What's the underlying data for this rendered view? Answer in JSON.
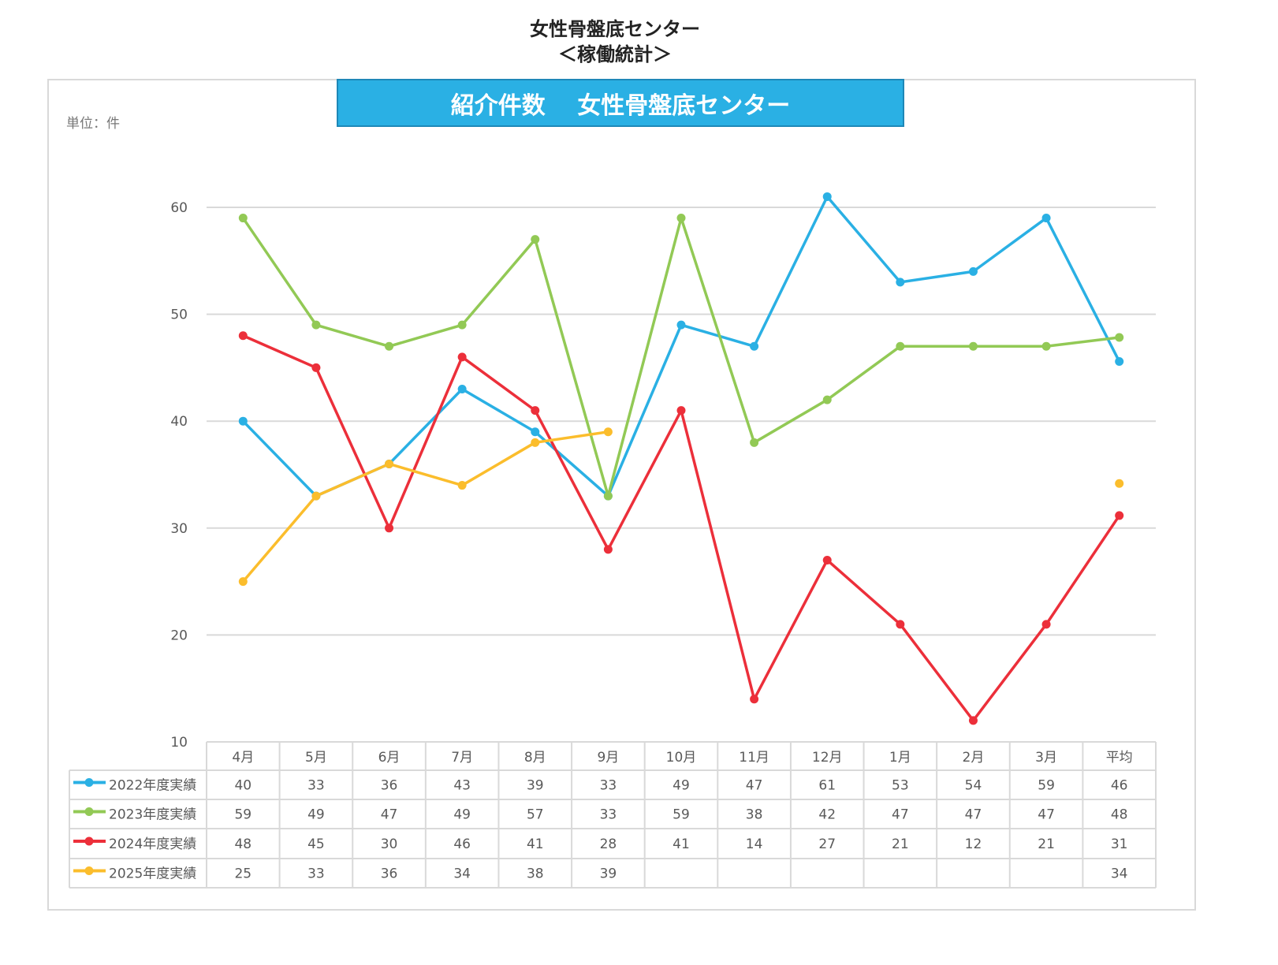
{
  "page_title": "女性骨盤底センター",
  "page_subtitle": "＜稼働統計＞",
  "chart_data": {
    "type": "line",
    "title": "紹介件数　 女性骨盤底センター",
    "unit_label": "単位：件",
    "categories": [
      "4月",
      "5月",
      "6月",
      "7月",
      "8月",
      "9月",
      "10月",
      "11月",
      "12月",
      "1月",
      "2月",
      "3月",
      "平均"
    ],
    "ylim": [
      10,
      60
    ],
    "yticks": [
      10,
      20,
      30,
      40,
      50,
      60
    ],
    "grid": true,
    "legend_placement": "data-table-bottom",
    "series": [
      {
        "name": "2022年度実績",
        "color": "#2ab0e4",
        "values": [
          40,
          33,
          36,
          43,
          39,
          33,
          49,
          47,
          61,
          53,
          54,
          59,
          45.58
        ],
        "labels": [
          "40",
          "33",
          "36",
          "43",
          "39",
          "33",
          "49",
          "47",
          "61",
          "53",
          "54",
          "59",
          "46"
        ]
      },
      {
        "name": "2023年度実績",
        "color": "#92c955",
        "values": [
          59,
          49,
          47,
          49,
          57,
          33,
          59,
          38,
          42,
          47,
          47,
          47,
          47.83
        ],
        "labels": [
          "59",
          "49",
          "47",
          "49",
          "57",
          "33",
          "59",
          "38",
          "42",
          "47",
          "47",
          "47",
          "48"
        ]
      },
      {
        "name": "2024年度実績",
        "color": "#ec2f3a",
        "values": [
          48,
          45,
          30,
          46,
          41,
          28,
          41,
          14,
          27,
          21,
          12,
          21,
          31.17
        ],
        "labels": [
          "48",
          "45",
          "30",
          "46",
          "41",
          "28",
          "41",
          "14",
          "27",
          "21",
          "12",
          "21",
          "31"
        ]
      },
      {
        "name": "2025年度実績",
        "color": "#fbbd2c",
        "values": [
          25,
          33,
          36,
          34,
          38,
          39,
          null,
          null,
          null,
          null,
          null,
          null,
          34.17
        ],
        "labels": [
          "25",
          "33",
          "36",
          "34",
          "38",
          "39",
          "",
          "",
          "",
          "",
          "",
          "",
          "34"
        ]
      }
    ]
  }
}
